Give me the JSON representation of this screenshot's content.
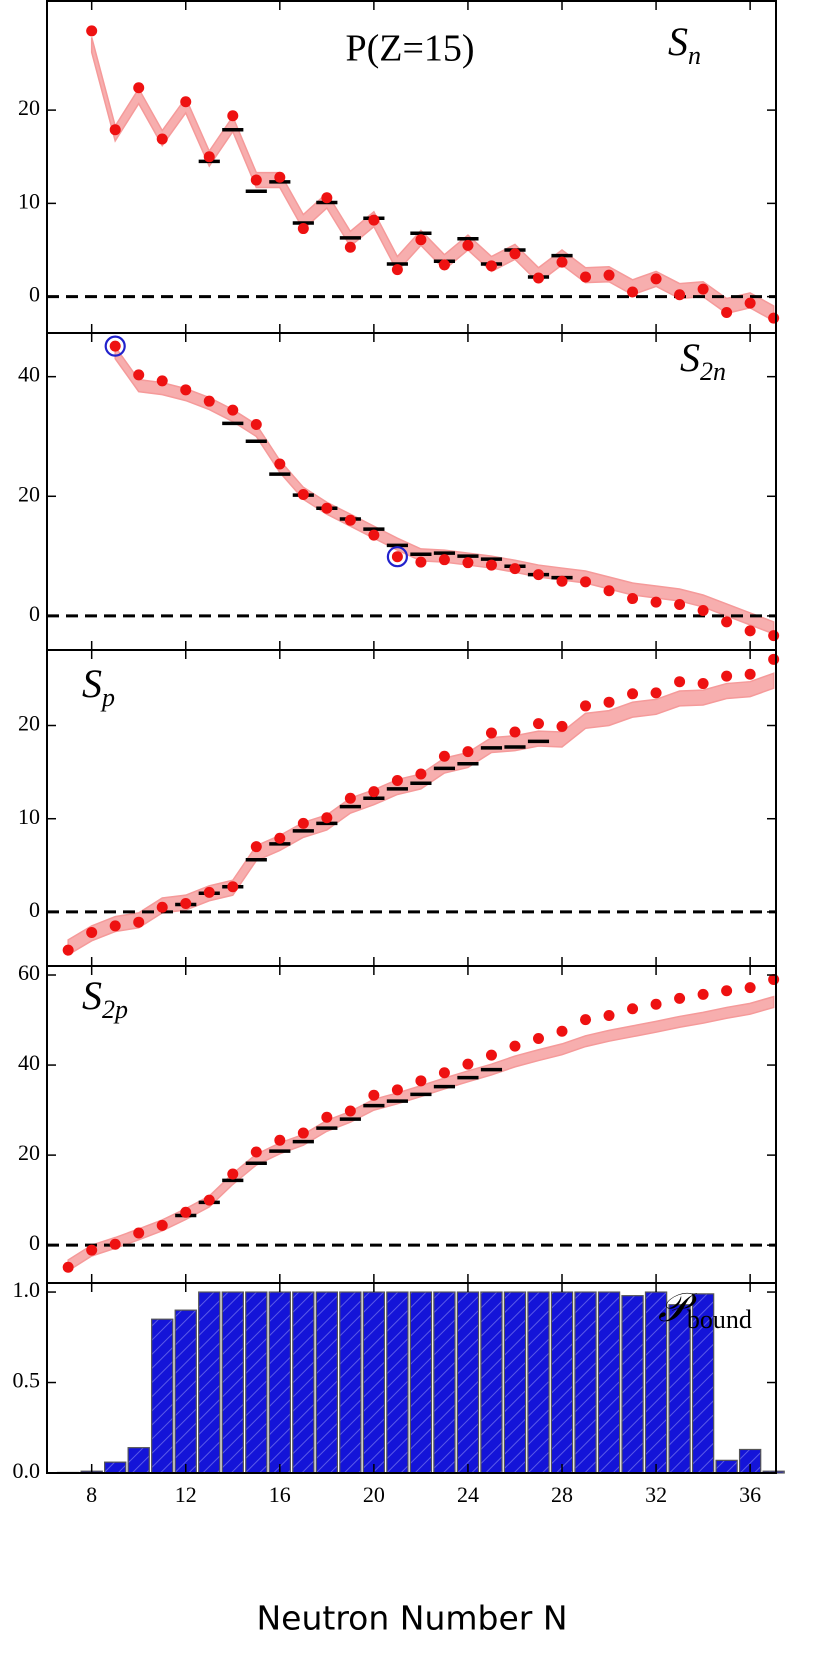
{
  "chart_data": [
    {
      "type": "scatter",
      "title": "P(Z=15)",
      "label": "S",
      "label_subscript": "n",
      "xlim": [
        6.1,
        37.1
      ],
      "xticks": [
        8,
        12,
        16,
        20,
        24,
        28,
        32,
        36
      ],
      "ylim": [
        -3.9,
        31.7
      ],
      "yticks": [
        0,
        10,
        20
      ],
      "zero_line": true,
      "x": [
        8,
        9,
        10,
        11,
        12,
        13,
        14,
        15,
        16,
        17,
        18,
        19,
        20,
        21,
        22,
        23,
        24,
        25,
        26,
        27,
        28,
        29,
        30,
        31,
        32,
        33,
        34,
        35,
        36,
        37
      ],
      "values": [
        28.5,
        17.9,
        22.4,
        16.9,
        20.9,
        15.0,
        19.4,
        12.5,
        12.8,
        7.3,
        10.6,
        5.3,
        8.2,
        2.9,
        6.1,
        3.4,
        5.5,
        3.3,
        4.6,
        2.0,
        3.7,
        2.1,
        2.3,
        0.5,
        1.9,
        0.2,
        0.8,
        -1.7,
        -0.7,
        -2.3
      ],
      "color": "#ee1111",
      "band": {
        "color": "#f59a9a",
        "x": [
          8,
          9,
          10,
          11,
          12,
          13,
          14,
          15,
          16,
          17,
          18,
          19,
          20,
          21,
          22,
          23,
          24,
          25,
          26,
          27,
          28,
          29,
          30,
          31,
          32,
          33,
          34,
          35,
          36,
          37
        ],
        "lower": [
          26.2,
          16.7,
          20.7,
          16.2,
          19.7,
          14.0,
          17.7,
          11.7,
          11.7,
          7.2,
          9.5,
          5.4,
          7.5,
          2.7,
          5.5,
          2.9,
          5.0,
          2.7,
          4.0,
          1.5,
          3.4,
          1.5,
          1.6,
          0.2,
          1.1,
          -0.2,
          0.0,
          -1.8,
          -1.2,
          -2.6
        ],
        "upper": [
          27.8,
          18.3,
          22.3,
          17.8,
          21.3,
          15.6,
          19.3,
          13.3,
          13.3,
          8.8,
          11.1,
          7.0,
          9.1,
          4.3,
          7.1,
          4.5,
          6.6,
          4.3,
          5.6,
          3.1,
          5.0,
          3.1,
          3.2,
          1.8,
          2.7,
          1.4,
          1.6,
          -0.2,
          0.4,
          -1.0
        ]
      },
      "experiment": {
        "color": "#000000",
        "x": [
          13,
          14,
          15,
          16,
          17,
          18,
          19,
          20,
          21,
          22,
          23,
          24,
          25,
          26,
          27,
          28
        ],
        "values": [
          14.5,
          17.9,
          11.3,
          12.3,
          7.9,
          10.1,
          6.3,
          8.4,
          3.5,
          6.8,
          3.8,
          6.2,
          3.5,
          5.0,
          2.1,
          4.4
        ]
      }
    },
    {
      "type": "scatter",
      "label": "S",
      "label_subscript": "2n",
      "xlim": [
        6.1,
        37.1
      ],
      "xticks": [
        8,
        12,
        16,
        20,
        24,
        28,
        32,
        36
      ],
      "ylim": [
        -5.7,
        47.3
      ],
      "yticks": [
        0,
        20,
        40
      ],
      "zero_line": true,
      "x": [
        9,
        10,
        11,
        12,
        13,
        14,
        15,
        16,
        17,
        18,
        19,
        20,
        21,
        22,
        23,
        24,
        25,
        26,
        27,
        28,
        29,
        30,
        31,
        32,
        33,
        34,
        35,
        36,
        37
      ],
      "values": [
        45.1,
        40.3,
        39.3,
        37.8,
        35.9,
        34.4,
        32.0,
        25.4,
        20.3,
        18.0,
        16.0,
        13.5,
        9.9,
        9.0,
        9.4,
        8.9,
        8.5,
        7.9,
        6.9,
        5.8,
        5.7,
        4.2,
        2.9,
        2.3,
        1.9,
        0.9,
        -1.0,
        -2.5,
        -3.3
      ],
      "color": "#ee1111",
      "circled": [
        9,
        21
      ],
      "circle_color": "#2222cc",
      "band": {
        "color": "#f59a9a",
        "x": [
          9,
          10,
          11,
          12,
          13,
          14,
          15,
          16,
          17,
          18,
          19,
          20,
          21,
          22,
          23,
          24,
          25,
          26,
          27,
          28,
          29,
          30,
          31,
          32,
          33,
          34,
          35,
          36,
          37
        ],
        "lower": [
          43,
          37.5,
          37,
          36,
          34.5,
          32.5,
          30,
          24,
          19.5,
          17,
          15,
          13,
          11,
          9.2,
          9,
          8.5,
          8,
          7.3,
          6.5,
          6,
          5.5,
          4.5,
          3.5,
          3,
          2.5,
          1.5,
          0,
          -1.5,
          -3
        ],
        "upper": [
          45,
          39.5,
          39,
          38,
          36.5,
          34.5,
          32,
          26,
          21.5,
          19,
          17,
          15,
          13,
          11.2,
          11,
          10.5,
          10,
          9.3,
          8.5,
          8,
          7.5,
          6.5,
          5.5,
          5,
          4.5,
          3.5,
          2,
          0.5,
          -1
        ]
      },
      "experiment": {
        "color": "#000000",
        "x": [
          14,
          15,
          16,
          17,
          18,
          19,
          20,
          21,
          22,
          23,
          24,
          25,
          26,
          27,
          28
        ],
        "values": [
          32.2,
          29.2,
          23.7,
          20.2,
          18.0,
          16.2,
          14.5,
          11.8,
          10.3,
          10.5,
          10.0,
          9.5,
          8.3,
          6.9,
          6.4
        ]
      }
    },
    {
      "type": "scatter",
      "label": "S",
      "label_subscript": "p",
      "xlim": [
        6.1,
        37.1
      ],
      "xticks": [
        8,
        12,
        16,
        20,
        24,
        28,
        32,
        36
      ],
      "ylim": [
        -5.8,
        28.1
      ],
      "yticks": [
        0,
        10,
        20
      ],
      "zero_line": true,
      "x": [
        7,
        8,
        9,
        10,
        11,
        12,
        13,
        14,
        15,
        16,
        17,
        18,
        19,
        20,
        21,
        22,
        23,
        24,
        25,
        26,
        27,
        28,
        29,
        30,
        31,
        32,
        33,
        34,
        35,
        36,
        37
      ],
      "values": [
        -4.1,
        -2.2,
        -1.5,
        -1.1,
        0.5,
        0.9,
        2.1,
        2.7,
        7.0,
        7.9,
        9.5,
        10.1,
        12.2,
        12.9,
        14.1,
        14.8,
        16.7,
        17.2,
        19.2,
        19.3,
        20.2,
        19.9,
        22.1,
        22.5,
        23.4,
        23.5,
        24.7,
        24.5,
        25.3,
        25.5,
        27.1
      ],
      "color": "#ee1111",
      "band": {
        "color": "#f59a9a",
        "x": [
          7,
          8,
          9,
          10,
          11,
          12,
          13,
          14,
          15,
          16,
          17,
          18,
          19,
          20,
          21,
          22,
          23,
          24,
          25,
          26,
          27,
          28,
          29,
          30,
          31,
          32,
          33,
          34,
          35,
          36,
          37
        ],
        "lower": [
          -4.6,
          -3.1,
          -2.1,
          -1.7,
          -0.1,
          0.2,
          1.2,
          1.8,
          5.5,
          6.6,
          8.0,
          8.8,
          10.6,
          11.5,
          12.6,
          13.2,
          14.9,
          15.5,
          17.1,
          17.3,
          17.8,
          17.7,
          19.7,
          20.0,
          20.9,
          21.2,
          22.1,
          22.2,
          22.9,
          23.1,
          24.0
        ],
        "upper": [
          -3.0,
          -1.5,
          -0.5,
          -0.1,
          1.5,
          1.8,
          2.8,
          3.4,
          7.1,
          8.2,
          9.6,
          10.4,
          12.2,
          13.1,
          14.2,
          14.8,
          16.5,
          17.1,
          18.7,
          18.9,
          19.4,
          19.3,
          21.3,
          21.6,
          22.5,
          22.8,
          23.7,
          23.8,
          24.5,
          24.7,
          25.6
        ]
      },
      "experiment": {
        "color": "#000000",
        "x": [
          12,
          13,
          14,
          15,
          16,
          17,
          18,
          19,
          20,
          21,
          22,
          23,
          24,
          25,
          26,
          27
        ],
        "values": [
          0.8,
          2.0,
          2.7,
          5.6,
          7.3,
          8.7,
          9.5,
          11.3,
          12.2,
          13.2,
          13.8,
          15.4,
          15.9,
          17.6,
          17.7,
          18.3
        ]
      }
    },
    {
      "type": "scatter",
      "label": "S",
      "label_subscript": "2p",
      "xlim": [
        6.1,
        37.1
      ],
      "xticks": [
        8,
        12,
        16,
        20,
        24,
        28,
        32,
        36
      ],
      "ylim": [
        -8.4,
        62
      ],
      "yticks": [
        0,
        20,
        40,
        60
      ],
      "zero_line": true,
      "x": [
        7,
        8,
        9,
        10,
        11,
        12,
        13,
        14,
        15,
        16,
        17,
        18,
        19,
        20,
        21,
        22,
        23,
        24,
        25,
        26,
        27,
        28,
        29,
        30,
        31,
        32,
        33,
        34,
        35,
        36,
        37
      ],
      "values": [
        -4.9,
        -1.1,
        0.2,
        2.7,
        4.4,
        7.3,
        10.0,
        15.8,
        20.7,
        23.3,
        24.9,
        28.4,
        29.8,
        33.3,
        34.5,
        36.5,
        38.3,
        40.2,
        42.2,
        44.2,
        45.9,
        47.5,
        50.1,
        51.0,
        52.5,
        53.5,
        54.8,
        55.7,
        56.5,
        57.2,
        59.0
      ],
      "color": "#ee1111",
      "band": {
        "color": "#f59a9a",
        "x": [
          7,
          8,
          9,
          10,
          11,
          12,
          13,
          14,
          15,
          16,
          17,
          18,
          19,
          20,
          21,
          22,
          23,
          24,
          25,
          26,
          27,
          28,
          29,
          30,
          31,
          32,
          33,
          34,
          35,
          36,
          37
        ],
        "lower": [
          -5.7,
          -2.4,
          -0.7,
          1.2,
          3.2,
          5.7,
          8.5,
          13.5,
          17.8,
          20.3,
          22.2,
          25.3,
          27.3,
          30.0,
          31.4,
          33.0,
          34.7,
          36.3,
          37.8,
          39.6,
          41.0,
          42.3,
          44.1,
          45.3,
          46.3,
          47.3,
          48.4,
          49.3,
          50.4,
          51.3,
          52.8
        ],
        "upper": [
          -3.3,
          0.0,
          1.7,
          3.6,
          5.6,
          8.1,
          10.9,
          15.9,
          20.2,
          22.7,
          24.6,
          27.7,
          29.7,
          32.4,
          33.8,
          35.4,
          37.1,
          38.7,
          40.2,
          42.0,
          43.4,
          44.7,
          46.5,
          47.7,
          48.7,
          49.7,
          50.8,
          51.7,
          52.8,
          53.7,
          55.2
        ]
      },
      "experiment": {
        "color": "#000000",
        "x": [
          12,
          13,
          14,
          15,
          16,
          17,
          18,
          19,
          20,
          21,
          22,
          23,
          24,
          25
        ],
        "values": [
          6.6,
          9.5,
          14.4,
          18.2,
          20.9,
          23.0,
          26.0,
          28.0,
          31.0,
          32.0,
          33.5,
          35.2,
          37.2,
          39.0
        ]
      }
    },
    {
      "type": "bar",
      "label": "𝒫",
      "label_subscript": "bound",
      "xlabel": "Neutron Number N",
      "xlim": [
        6.1,
        37.1
      ],
      "xticks": [
        8,
        12,
        16,
        20,
        24,
        28,
        32,
        36
      ],
      "ylim": [
        0,
        1.05
      ],
      "yticks": [
        {
          "value": 0,
          "label": "0.0"
        },
        0.5,
        {
          "value": 1,
          "label": "1.0"
        }
      ],
      "x": [
        7,
        8,
        9,
        10,
        11,
        12,
        13,
        14,
        15,
        16,
        17,
        18,
        19,
        20,
        21,
        22,
        23,
        24,
        25,
        26,
        27,
        28,
        29,
        30,
        31,
        32,
        33,
        34,
        35,
        36,
        37
      ],
      "values": [
        0.003,
        0.01,
        0.06,
        0.14,
        0.85,
        0.9,
        1.0,
        1.0,
        1.0,
        1.0,
        1.0,
        1.0,
        1.0,
        1.0,
        1.0,
        1.0,
        1.0,
        1.0,
        1.0,
        1.0,
        1.0,
        1.0,
        1.0,
        1.0,
        0.98,
        1.0,
        0.93,
        0.99,
        0.07,
        0.13,
        0.01
      ],
      "color": "#1414d8"
    }
  ]
}
